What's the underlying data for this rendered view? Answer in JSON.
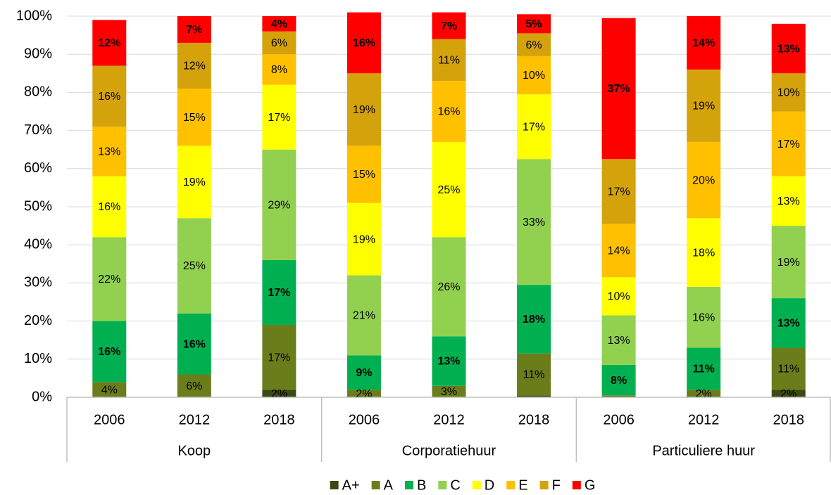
{
  "chart_data": {
    "type": "stacked_bar",
    "groups": [
      {
        "name": "Koop",
        "categories": [
          "2006",
          "2012",
          "2018"
        ]
      },
      {
        "name": "Corporatiehuur",
        "categories": [
          "2006",
          "2012",
          "2018"
        ]
      },
      {
        "name": "Particuliere huur",
        "categories": [
          "2006",
          "2012",
          "2018"
        ]
      }
    ],
    "ylim": [
      0,
      100
    ],
    "yticks": [
      {
        "value": 0,
        "label": "0%"
      },
      {
        "value": 10,
        "label": "10%"
      },
      {
        "value": 20,
        "label": "20%"
      },
      {
        "value": 30,
        "label": "30%"
      },
      {
        "value": 40,
        "label": "40%"
      },
      {
        "value": 50,
        "label": "50%"
      },
      {
        "value": 60,
        "label": "60%"
      },
      {
        "value": 70,
        "label": "70%"
      },
      {
        "value": 80,
        "label": "80%"
      },
      {
        "value": 90,
        "label": "90%"
      },
      {
        "value": 100,
        "label": "100%"
      }
    ],
    "grid": true,
    "legend": "bottom",
    "series": [
      {
        "name": "A+",
        "color": "#3b4a12",
        "label_color": "#ffffff",
        "values": [
          0,
          0,
          2,
          0,
          0,
          0.5,
          0,
          0,
          2
        ],
        "value_labels": [
          null,
          null,
          "2%",
          null,
          null,
          null,
          null,
          null,
          "2%"
        ]
      },
      {
        "name": "A",
        "color": "#6b7d1a",
        "label_color": "#ffffff",
        "values": [
          4,
          6,
          17,
          2,
          3,
          11,
          0.5,
          2,
          11
        ],
        "value_labels": [
          "4%",
          "6%",
          "17%",
          "2%",
          "3%",
          "11%",
          null,
          "2%",
          "11%"
        ]
      },
      {
        "name": "B",
        "color": "#00b050",
        "label_color": "#ffffff",
        "values": [
          16,
          16,
          17,
          9,
          13,
          18,
          8,
          11,
          13
        ],
        "value_labels": [
          "16%",
          "16%",
          "17%",
          "9%",
          "13%",
          "18%",
          "8%",
          "11%",
          "13%"
        ]
      },
      {
        "name": "C",
        "color": "#92d050",
        "label_color": "#222222",
        "values": [
          22,
          25,
          29,
          21,
          26,
          33,
          13,
          16,
          19
        ],
        "value_labels": [
          "22%",
          "25%",
          "29%",
          "21%",
          "26%",
          "33%",
          "13%",
          "16%",
          "19%"
        ]
      },
      {
        "name": "D",
        "color": "#ffff00",
        "label_color": "#222222",
        "values": [
          16,
          19,
          17,
          19,
          25,
          17,
          10,
          18,
          13
        ],
        "value_labels": [
          "16%",
          "19%",
          "17%",
          "19%",
          "25%",
          "17%",
          "10%",
          "18%",
          "13%"
        ]
      },
      {
        "name": "E",
        "color": "#ffc000",
        "label_color": "#222222",
        "values": [
          13,
          15,
          8,
          15,
          16,
          10,
          14,
          20,
          17
        ],
        "value_labels": [
          "13%",
          "15%",
          "8%",
          "15%",
          "16%",
          "10%",
          "14%",
          "20%",
          "17%"
        ]
      },
      {
        "name": "F",
        "color": "#d4a20a",
        "label_color": "#222222",
        "values": [
          16,
          12,
          6,
          19,
          11,
          6,
          17,
          19,
          10
        ],
        "value_labels": [
          "16%",
          "12%",
          "6%",
          "19%",
          "11%",
          "6%",
          "17%",
          "19%",
          "10%"
        ]
      },
      {
        "name": "G",
        "color": "#ff0000",
        "label_color": "#ffffff",
        "values": [
          12,
          7,
          4,
          16,
          7,
          5,
          37,
          14,
          13
        ],
        "value_labels": [
          "12%",
          "7%",
          "4%",
          "16%",
          "7%",
          "5%",
          "37%",
          "14%",
          "13%"
        ]
      }
    ]
  }
}
